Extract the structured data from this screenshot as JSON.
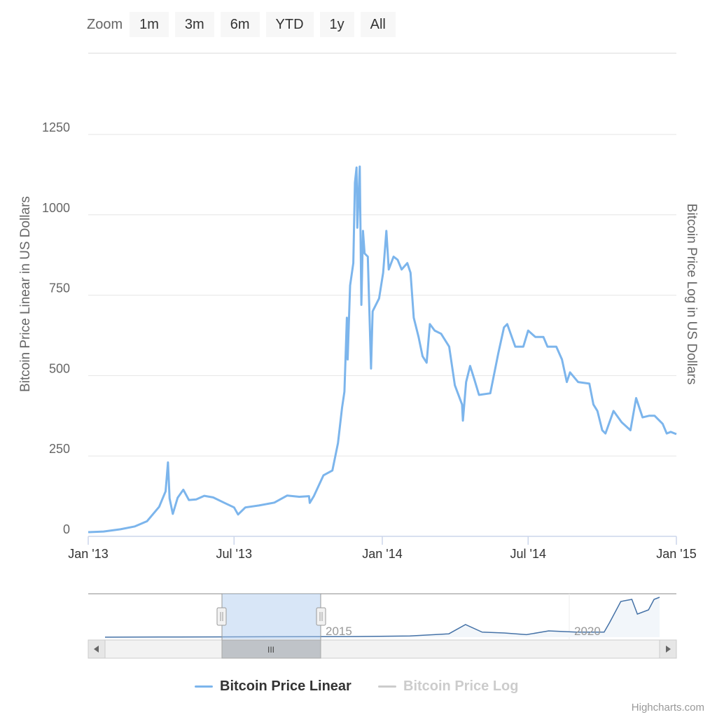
{
  "zoom": {
    "label": "Zoom",
    "buttons": [
      "1m",
      "3m",
      "6m",
      "YTD",
      "1y",
      "All"
    ]
  },
  "legend": {
    "items": [
      {
        "name": "Bitcoin Price Linear",
        "color": "#7cb5ec",
        "active": true
      },
      {
        "name": "Bitcoin Price Log",
        "color": "#cccccc",
        "active": false
      }
    ]
  },
  "credits": "Highcharts.com",
  "navigator": {
    "labels": [
      "2015",
      "2020"
    ],
    "scroll_handle_glyph": "III"
  },
  "colors": {
    "series": "#7cb5ec",
    "navigator_series": "#4572a7",
    "navigator_mask": "#c3d9f5",
    "grid": "#e6e6e6",
    "axis_text": "#666666"
  },
  "chart_data": {
    "type": "line",
    "title": "",
    "ylabel_left": "Bitcoin Price Linear in US Dollars",
    "ylabel_right": "Bitcoin Price Log in US Dollars",
    "ylim": [
      0,
      1250
    ],
    "yticks": [
      "0",
      "250",
      "500",
      "750",
      "1000",
      "1250"
    ],
    "xlim": [
      "2013-01-01",
      "2015-01-01"
    ],
    "xticks": [
      {
        "date": "2013-01-01",
        "label": "Jan '13"
      },
      {
        "date": "2013-07-01",
        "label": "Jul '13"
      },
      {
        "date": "2014-01-01",
        "label": "Jan '14"
      },
      {
        "date": "2014-07-01",
        "label": "Jul '14"
      },
      {
        "date": "2015-01-01",
        "label": "Jan '15"
      }
    ],
    "grid": true,
    "legend_position": "bottom-center",
    "series": [
      {
        "name": "Bitcoin Price Linear",
        "points": [
          [
            "2013-01-01",
            13
          ],
          [
            "2013-01-20",
            15
          ],
          [
            "2013-02-10",
            22
          ],
          [
            "2013-02-28",
            31
          ],
          [
            "2013-03-15",
            47
          ],
          [
            "2013-03-30",
            92
          ],
          [
            "2013-04-07",
            140
          ],
          [
            "2013-04-10",
            230
          ],
          [
            "2013-04-12",
            118
          ],
          [
            "2013-04-16",
            70
          ],
          [
            "2013-04-22",
            120
          ],
          [
            "2013-04-29",
            145
          ],
          [
            "2013-05-06",
            113
          ],
          [
            "2013-05-15",
            115
          ],
          [
            "2013-05-25",
            126
          ],
          [
            "2013-06-05",
            121
          ],
          [
            "2013-06-20",
            103
          ],
          [
            "2013-07-01",
            90
          ],
          [
            "2013-07-06",
            68
          ],
          [
            "2013-07-15",
            90
          ],
          [
            "2013-08-01",
            96
          ],
          [
            "2013-08-20",
            105
          ],
          [
            "2013-09-05",
            127
          ],
          [
            "2013-09-20",
            123
          ],
          [
            "2013-10-02",
            125
          ],
          [
            "2013-10-03",
            104
          ],
          [
            "2013-10-08",
            125
          ],
          [
            "2013-10-20",
            190
          ],
          [
            "2013-10-31",
            205
          ],
          [
            "2013-11-07",
            290
          ],
          [
            "2013-11-12",
            400
          ],
          [
            "2013-11-15",
            450
          ],
          [
            "2013-11-18",
            680
          ],
          [
            "2013-11-19",
            550
          ],
          [
            "2013-11-22",
            780
          ],
          [
            "2013-11-26",
            850
          ],
          [
            "2013-11-28",
            1100
          ],
          [
            "2013-11-30",
            1147
          ],
          [
            "2013-12-01",
            960
          ],
          [
            "2013-12-04",
            1150
          ],
          [
            "2013-12-06",
            720
          ],
          [
            "2013-12-08",
            950
          ],
          [
            "2013-12-10",
            880
          ],
          [
            "2013-12-14",
            870
          ],
          [
            "2013-12-18",
            522
          ],
          [
            "2013-12-20",
            700
          ],
          [
            "2013-12-28",
            740
          ],
          [
            "2014-01-02",
            820
          ],
          [
            "2014-01-06",
            950
          ],
          [
            "2014-01-09",
            830
          ],
          [
            "2014-01-15",
            870
          ],
          [
            "2014-01-20",
            860
          ],
          [
            "2014-01-25",
            830
          ],
          [
            "2014-02-01",
            850
          ],
          [
            "2014-02-05",
            820
          ],
          [
            "2014-02-09",
            680
          ],
          [
            "2014-02-15",
            620
          ],
          [
            "2014-02-20",
            560
          ],
          [
            "2014-02-25",
            540
          ],
          [
            "2014-03-01",
            660
          ],
          [
            "2014-03-07",
            640
          ],
          [
            "2014-03-15",
            630
          ],
          [
            "2014-03-25",
            590
          ],
          [
            "2014-04-01",
            470
          ],
          [
            "2014-04-10",
            410
          ],
          [
            "2014-04-11",
            360
          ],
          [
            "2014-04-15",
            480
          ],
          [
            "2014-04-20",
            530
          ],
          [
            "2014-04-25",
            490
          ],
          [
            "2014-05-01",
            440
          ],
          [
            "2014-05-15",
            445
          ],
          [
            "2014-05-25",
            570
          ],
          [
            "2014-06-01",
            650
          ],
          [
            "2014-06-05",
            660
          ],
          [
            "2014-06-15",
            590
          ],
          [
            "2014-06-25",
            590
          ],
          [
            "2014-07-01",
            640
          ],
          [
            "2014-07-10",
            620
          ],
          [
            "2014-07-20",
            620
          ],
          [
            "2014-07-25",
            590
          ],
          [
            "2014-08-05",
            590
          ],
          [
            "2014-08-12",
            550
          ],
          [
            "2014-08-18",
            480
          ],
          [
            "2014-08-22",
            510
          ],
          [
            "2014-09-01",
            480
          ],
          [
            "2014-09-15",
            475
          ],
          [
            "2014-09-20",
            410
          ],
          [
            "2014-09-25",
            390
          ],
          [
            "2014-10-01",
            330
          ],
          [
            "2014-10-05",
            320
          ],
          [
            "2014-10-15",
            390
          ],
          [
            "2014-10-25",
            355
          ],
          [
            "2014-11-05",
            330
          ],
          [
            "2014-11-12",
            430
          ],
          [
            "2014-11-20",
            370
          ],
          [
            "2014-11-28",
            375
          ],
          [
            "2014-12-05",
            375
          ],
          [
            "2014-12-15",
            350
          ],
          [
            "2014-12-20",
            320
          ],
          [
            "2014-12-25",
            325
          ],
          [
            "2015-01-01",
            318
          ]
        ]
      }
    ]
  }
}
